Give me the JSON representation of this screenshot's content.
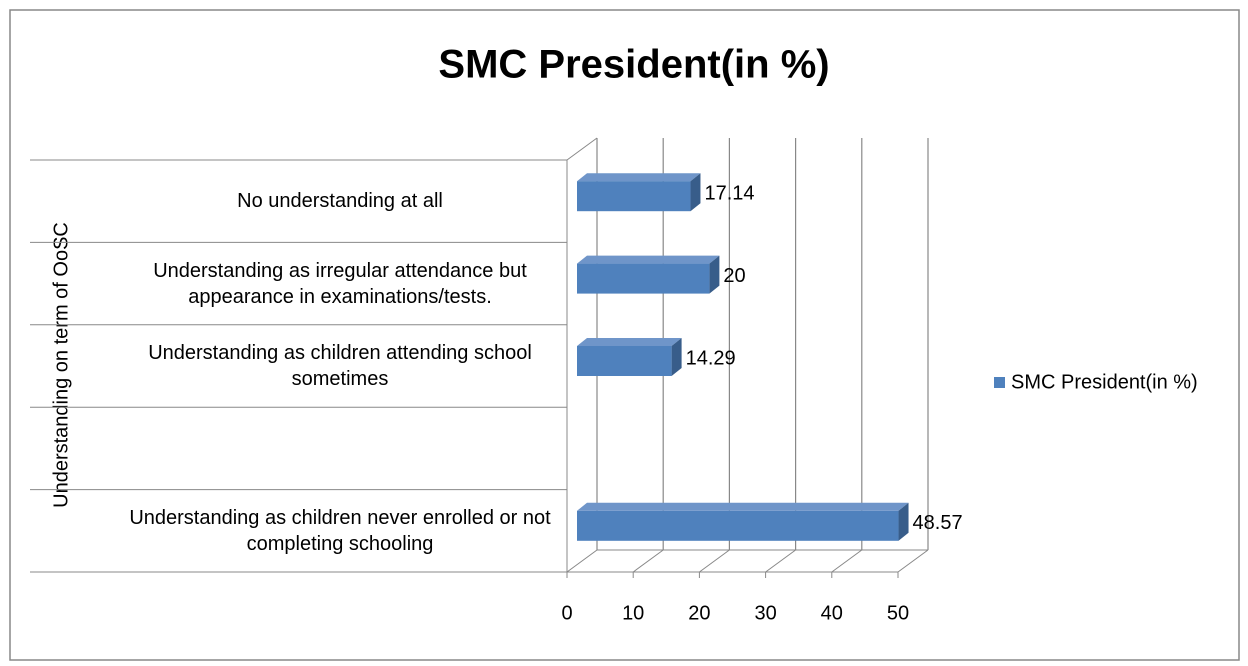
{
  "chart_data": {
    "type": "bar",
    "orientation": "horizontal",
    "title": "SMC President(in %)",
    "y_label": "Understanding on term of OoSC",
    "categories": [
      "No understanding at all",
      "Understanding  as irregular attendance but appearance  in examinations/tests.",
      "Understanding  as children attending school sometimes",
      null,
      "Understanding as children never enrolled or not completing schooling"
    ],
    "series": [
      {
        "name": "SMC President(in %)",
        "color": "#4f81bd",
        "values": [
          17.14,
          20,
          14.29,
          null,
          48.57
        ]
      }
    ],
    "xlim": [
      0,
      50
    ],
    "xticks": [
      0,
      10,
      20,
      30,
      40,
      50
    ],
    "grid": true,
    "legend": "right"
  }
}
